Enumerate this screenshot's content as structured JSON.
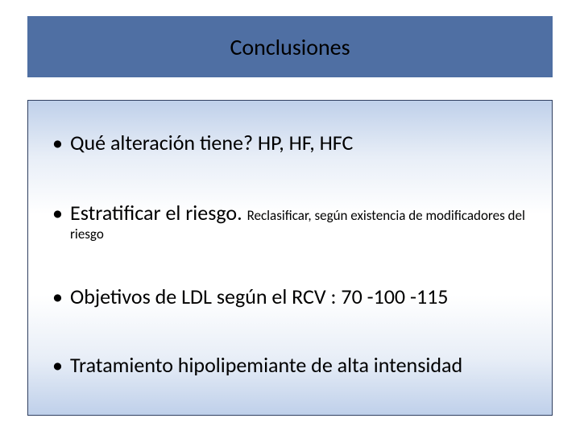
{
  "title": "Conclusiones",
  "colors": {
    "title_bar_bg": "#4f6fa3",
    "border": "#2f3f60",
    "gradient_edge": "#bfd0ea",
    "gradient_mid": "#e8eef7",
    "gradient_center": "#ffffff",
    "text": "#000000"
  },
  "typography": {
    "title_fontsize": 28,
    "main_fontsize": 26,
    "sub_fontsize": 17,
    "font_family": "Calibri"
  },
  "bullets": {
    "b1": {
      "main": "Qué alteración tiene? HP, HF, HFC"
    },
    "b2": {
      "main": "Estratificar el riesgo. ",
      "sub": "Reclasificar, según existencia de modificadores del riesgo"
    },
    "b3": {
      "main": "Objetivos de LDL según el RCV : 70 -100 -115"
    },
    "b4": {
      "main": "Tratamiento hipolipemiante de alta intensidad"
    }
  }
}
